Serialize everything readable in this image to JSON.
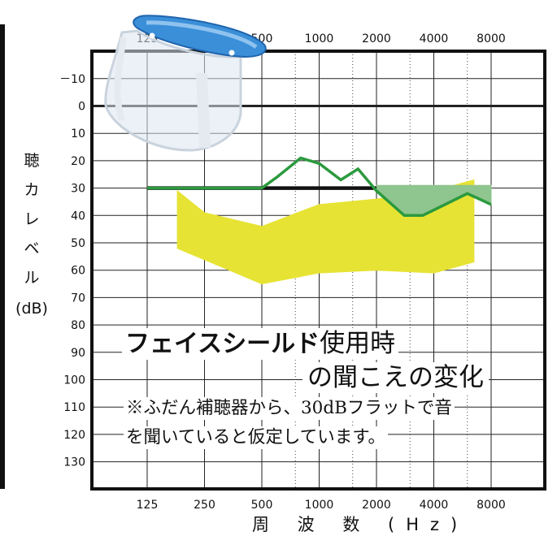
{
  "chart_data": {
    "type": "line",
    "title": "フェイスシールド使用時の聞こえの変化",
    "xlabel": "周 波 数 (Hz)",
    "ylabel": "聴力レベル(dB)",
    "x_ticks": [
      "125",
      "250",
      "500",
      "1000",
      "2000",
      "4000",
      "8000"
    ],
    "y_ticks": [
      "－10",
      "0",
      "10",
      "20",
      "30",
      "40",
      "50",
      "60",
      "70",
      "80",
      "90",
      "100",
      "110",
      "120",
      "130"
    ],
    "ylim": [
      -20,
      140
    ],
    "y_inverted": true,
    "x_scale": "log",
    "grid": true,
    "series": [
      {
        "role": "flat-aided-30dB",
        "color": "#111111",
        "x": [
          125,
          2000
        ],
        "y": [
          30,
          30
        ]
      },
      {
        "role": "face-shield",
        "color": "#2b9a3e",
        "x": [
          125,
          500,
          600,
          800,
          1000,
          1300,
          1600,
          2000,
          2800,
          3500,
          6000,
          8000
        ],
        "y": [
          30,
          30,
          26,
          19,
          21,
          27,
          23,
          31,
          40,
          40,
          32,
          36
        ]
      }
    ],
    "shaded_areas": [
      {
        "role": "speech-banana",
        "color": "#e6e334",
        "upper": {
          "x": [
            180,
            250,
            500,
            1000,
            2000,
            4000,
            6500
          ],
          "y": [
            31,
            39,
            44,
            36,
            34,
            31,
            27
          ]
        },
        "lower": {
          "x": [
            180,
            500,
            1000,
            2000,
            4000,
            6500
          ],
          "y": [
            52,
            65,
            61,
            60,
            61,
            57
          ]
        }
      },
      {
        "role": "loss-region",
        "color": "#8fc58e",
        "upper": {
          "x": [
            2000,
            8000
          ],
          "y": [
            29,
            29
          ]
        },
        "lower": {
          "x": [
            2000,
            2800,
            3500,
            6000,
            8000
          ],
          "y": [
            31,
            40,
            40,
            32,
            36
          ]
        }
      }
    ]
  },
  "annotation": {
    "title_bold": "フェイスシールド",
    "title_rest": "使用時",
    "subtitle": "の聞こえの変化",
    "note_line1": "※ふだん補聴器から、30dBフラットで音",
    "note_line2": "を聞いていると仮定しています。"
  },
  "ylabel_chars": [
    "聴",
    "カ",
    "レ",
    "ベ",
    "ル"
  ],
  "ylabel_unit": "(dB)",
  "colors": {
    "yellow": "#e6e334",
    "green_line": "#2b9a3e",
    "green_fill": "#8fc58e",
    "shield_blue": "#3a8fd8"
  },
  "icons": [
    "face-shield-icon"
  ]
}
